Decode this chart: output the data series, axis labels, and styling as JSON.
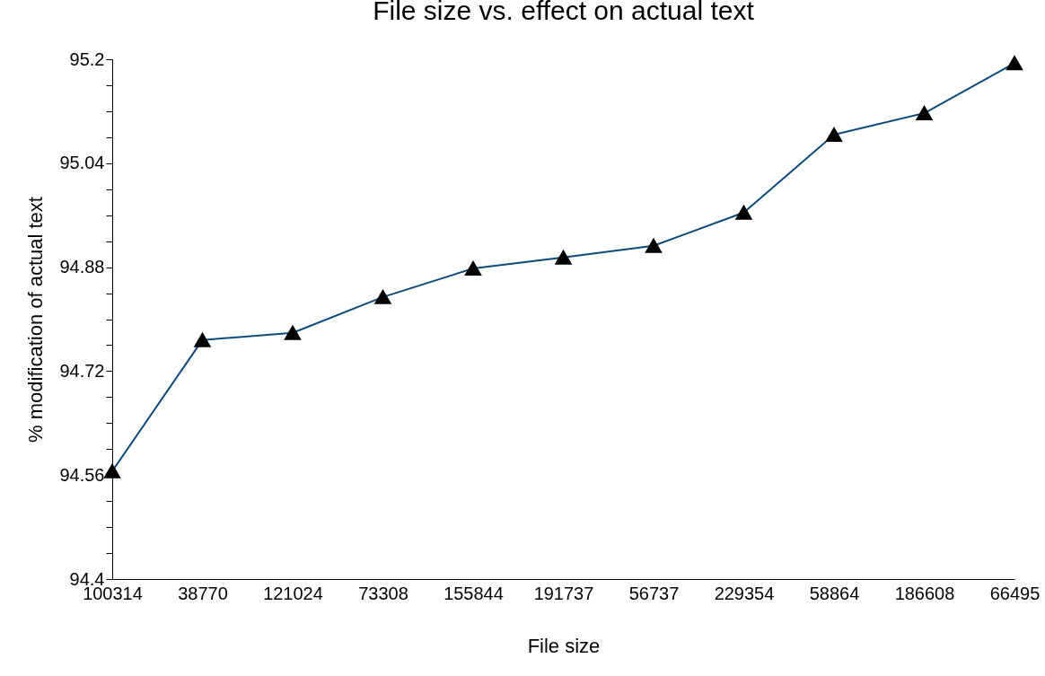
{
  "chart_data": {
    "type": "line",
    "title": "File size vs. effect on actual text",
    "xlabel": "File size",
    "ylabel": "% modification of actual text",
    "categories": [
      "100314",
      "38770",
      "121024",
      "73308",
      "155844",
      "191737",
      "56737",
      "229354",
      "58864",
      "186608",
      "66495"
    ],
    "series": [
      {
        "color": "#0d4a7a",
        "values": [
          94.566,
          94.768,
          94.779,
          94.834,
          94.878,
          94.895,
          94.913,
          94.964,
          95.084,
          95.117,
          95.194
        ]
      }
    ],
    "ylim": [
      94.4,
      95.2
    ],
    "yticks": [
      94.4,
      {
        "value": 94.44,
        "label": null
      },
      {
        "value": 94.48,
        "label": null
      },
      {
        "value": 94.52,
        "label": null
      },
      94.56,
      {
        "value": 94.6,
        "label": null
      },
      {
        "value": 94.64,
        "label": null
      },
      {
        "value": 94.68,
        "label": null
      },
      94.72,
      {
        "value": 94.76,
        "label": null
      },
      {
        "value": 94.8,
        "label": null
      },
      {
        "value": 94.84,
        "label": null
      },
      94.88,
      {
        "value": 94.92,
        "label": null
      },
      {
        "value": 94.96,
        "label": null
      },
      {
        "value": 95,
        "label": null
      },
      95.04,
      {
        "value": 95.08,
        "label": null
      },
      {
        "value": 95.12,
        "label": null
      },
      {
        "value": 95.16,
        "label": null
      },
      95.2
    ],
    "grid": false,
    "legend": false,
    "marker": "triangle",
    "line_style": "solid"
  }
}
